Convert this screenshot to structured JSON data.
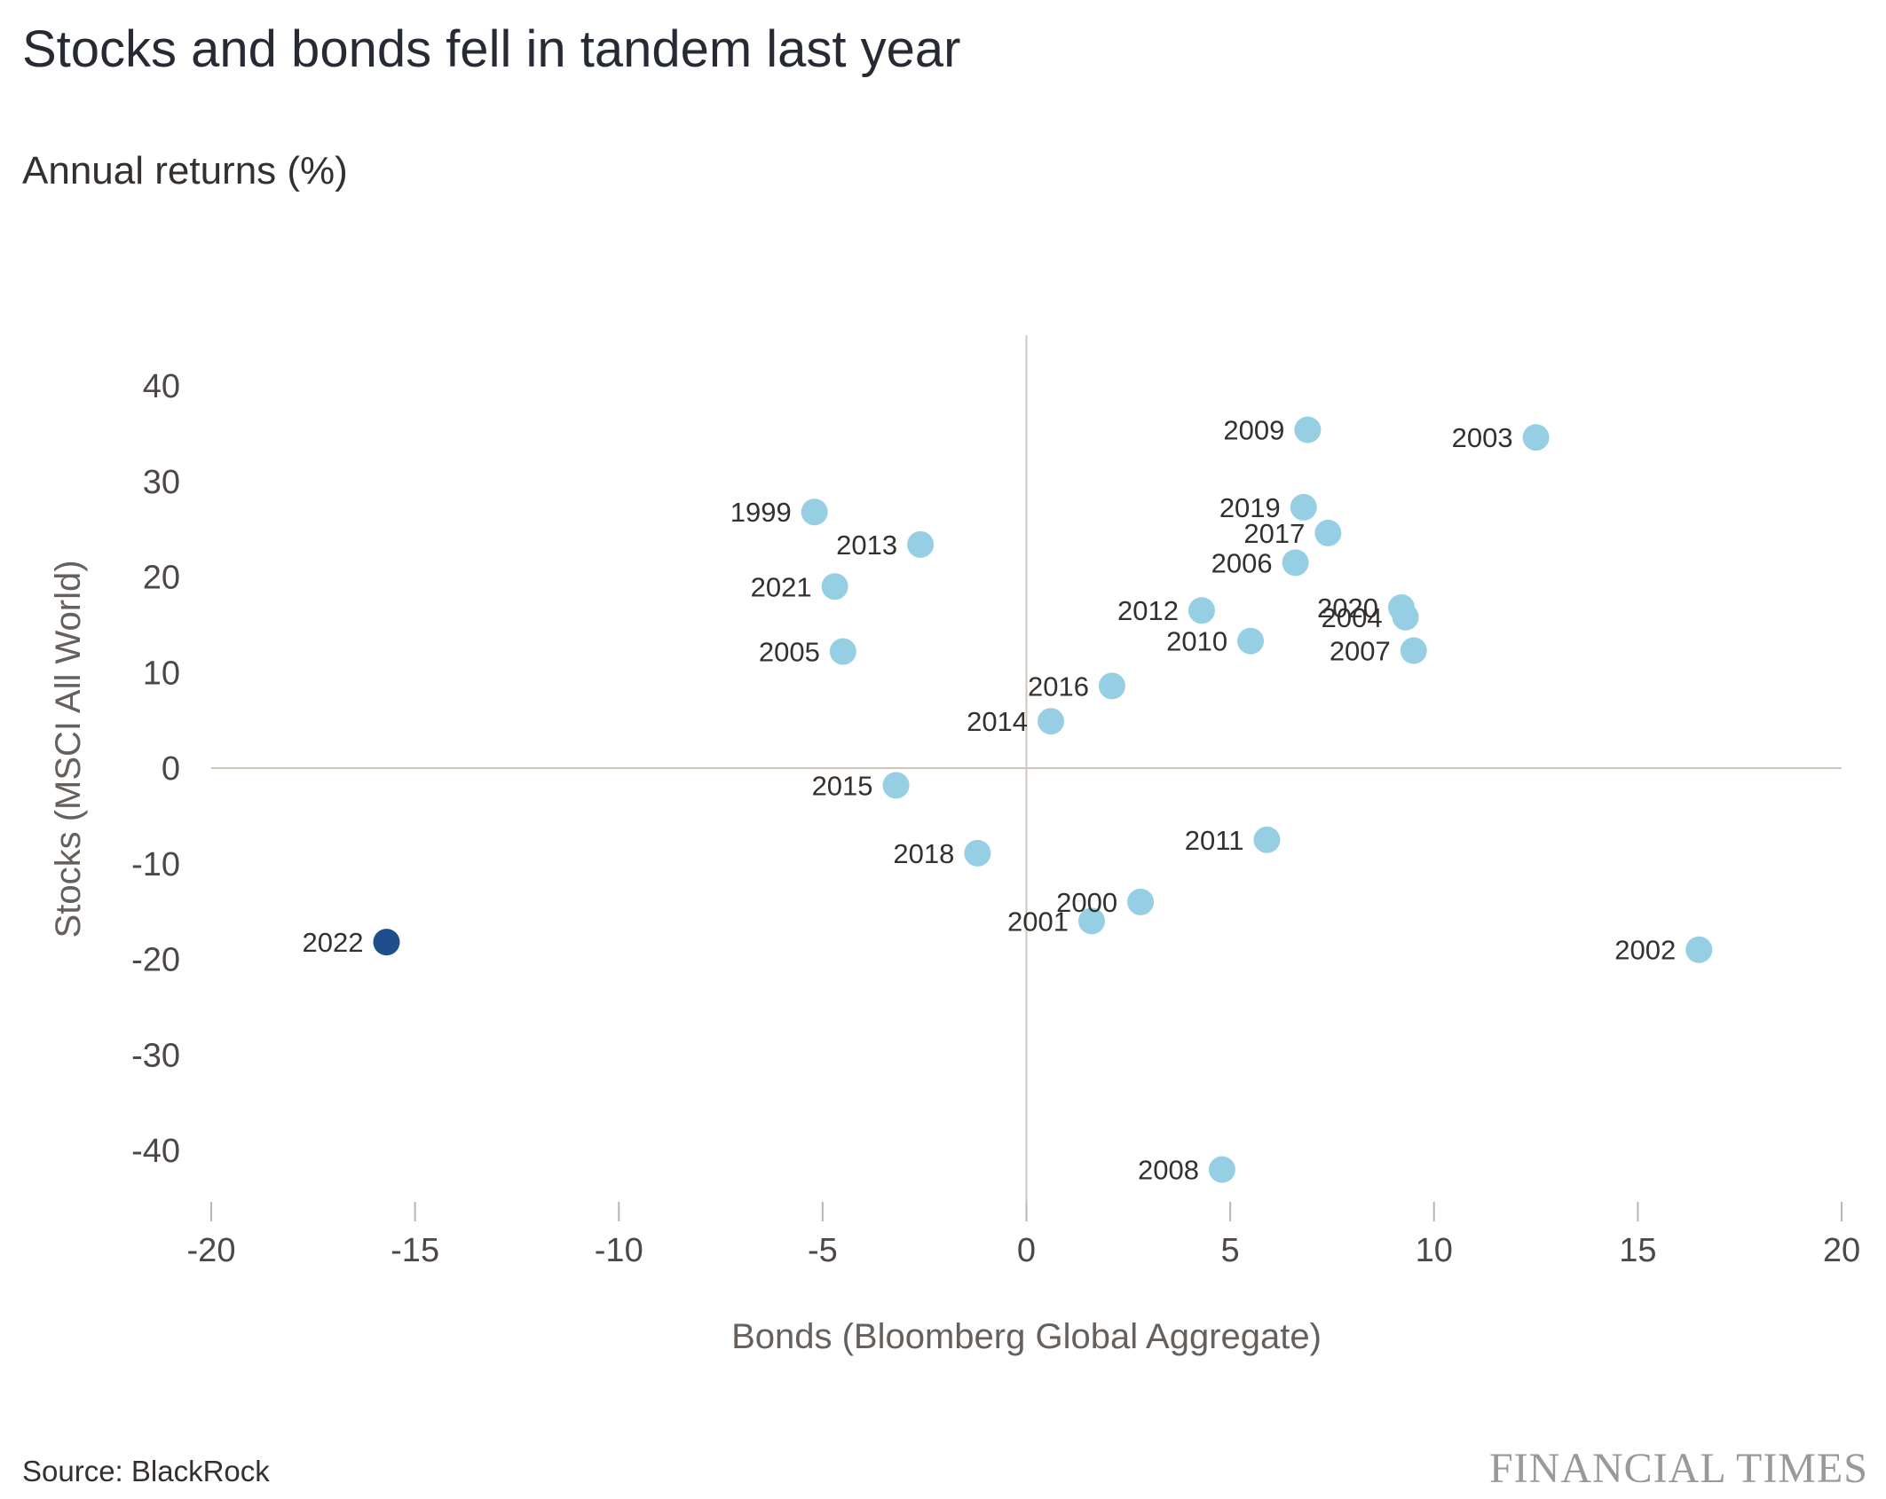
{
  "header": {
    "title": "Stocks and bonds fell in tandem last year",
    "subtitle": "Annual returns (%)"
  },
  "footer": {
    "source": "Source: BlackRock",
    "brand": "FINANCIAL TIMES"
  },
  "colors": {
    "point": "#96cfe3",
    "highlight": "#1e4e8c",
    "zero_line": "#cfc5bb",
    "tick": "#bdb5ad"
  },
  "chart_data": {
    "type": "scatter",
    "title": "Stocks and bonds fell in tandem last year",
    "subtitle": "Annual returns (%)",
    "xlabel": "Bonds (Bloomberg Global Aggregate)",
    "ylabel": "Stocks (MSCI All World)",
    "xlim": [
      -20,
      20
    ],
    "ylim": [
      -45,
      45
    ],
    "xticks": [
      "-20",
      "-15",
      "-10",
      "-5",
      "0",
      "5",
      "10",
      "15",
      "20"
    ],
    "yticks": [
      "40",
      "30",
      "20",
      "10",
      "0",
      "-10",
      "-20",
      "-30",
      "-40"
    ],
    "grid": false,
    "legend": "none",
    "points": [
      {
        "label": "1999",
        "x": -5.2,
        "y": 26.8
      },
      {
        "label": "2000",
        "x": 2.8,
        "y": -14.0
      },
      {
        "label": "2001",
        "x": 1.6,
        "y": -16.0
      },
      {
        "label": "2002",
        "x": 16.5,
        "y": -19.0
      },
      {
        "label": "2003",
        "x": 12.5,
        "y": 34.6
      },
      {
        "label": "2004",
        "x": 9.3,
        "y": 15.8
      },
      {
        "label": "2005",
        "x": -4.5,
        "y": 12.2
      },
      {
        "label": "2006",
        "x": 6.6,
        "y": 21.5
      },
      {
        "label": "2007",
        "x": 9.5,
        "y": 12.3
      },
      {
        "label": "2008",
        "x": 4.8,
        "y": -42.0
      },
      {
        "label": "2009",
        "x": 6.9,
        "y": 35.4
      },
      {
        "label": "2010",
        "x": 5.5,
        "y": 13.3
      },
      {
        "label": "2011",
        "x": 5.9,
        "y": -7.5
      },
      {
        "label": "2012",
        "x": 4.3,
        "y": 16.5
      },
      {
        "label": "2013",
        "x": -2.6,
        "y": 23.4
      },
      {
        "label": "2014",
        "x": 0.6,
        "y": 4.9
      },
      {
        "label": "2015",
        "x": -3.2,
        "y": -1.8
      },
      {
        "label": "2016",
        "x": 2.1,
        "y": 8.6
      },
      {
        "label": "2017",
        "x": 7.4,
        "y": 24.6
      },
      {
        "label": "2018",
        "x": -1.2,
        "y": -8.9
      },
      {
        "label": "2019",
        "x": 6.8,
        "y": 27.3
      },
      {
        "label": "2020",
        "x": 9.2,
        "y": 16.8
      },
      {
        "label": "2021",
        "x": -4.7,
        "y": 19.0
      },
      {
        "label": "2022",
        "x": -15.7,
        "y": -18.2,
        "highlight": true
      }
    ]
  }
}
